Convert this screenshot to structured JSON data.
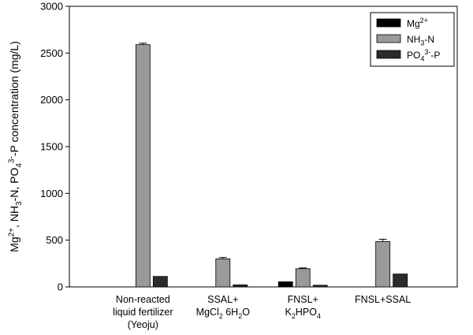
{
  "chart_data": {
    "type": "bar",
    "categories": [
      {
        "lines": [
          [
            {
              "t": "Non-reacted"
            }
          ],
          [
            {
              "t": "liquid fertilizer"
            }
          ],
          [
            {
              "t": "(Yeoju)"
            }
          ]
        ]
      },
      {
        "lines": [
          [
            {
              "t": "SSAL+"
            }
          ],
          [
            {
              "t": "MgCl"
            },
            {
              "t": "2",
              "sub": true
            },
            {
              "t": " 6H"
            },
            {
              "t": "2",
              "sub": true
            },
            {
              "t": "O"
            }
          ]
        ]
      },
      {
        "lines": [
          [
            {
              "t": "FNSL+"
            }
          ],
          [
            {
              "t": "K"
            },
            {
              "t": "2",
              "sub": true
            },
            {
              "t": "HPO"
            },
            {
              "t": "4",
              "sub": true
            }
          ]
        ]
      },
      {
        "lines": [
          [
            {
              "t": "FNSL+SSAL"
            }
          ]
        ]
      }
    ],
    "series": [
      {
        "name": [
          {
            "t": "Mg"
          },
          {
            "t": "2+",
            "sup": true
          }
        ],
        "color": "#000000",
        "values": [
          0,
          0,
          55,
          0
        ],
        "errors": [
          0,
          0,
          0,
          0
        ]
      },
      {
        "name": [
          {
            "t": "NH"
          },
          {
            "t": "3",
            "sub": true
          },
          {
            "t": "-N"
          }
        ],
        "color": "#9a9a9a",
        "values": [
          2590,
          300,
          195,
          485
        ],
        "errors": [
          15,
          15,
          8,
          25
        ]
      },
      {
        "name": [
          {
            "t": "PO"
          },
          {
            "t": "4",
            "sub": true
          },
          {
            "t": "3-",
            "sup": true
          },
          {
            "t": "-P"
          }
        ],
        "color": "#2b2b2b",
        "values": [
          112,
          22,
          18,
          138
        ],
        "errors": [
          0,
          0,
          0,
          0
        ]
      }
    ],
    "ylabel": [
      {
        "t": "Mg"
      },
      {
        "t": "2+",
        "sup": true
      },
      {
        "t": ", NH"
      },
      {
        "t": "3",
        "sub": true
      },
      {
        "t": "-N, PO"
      },
      {
        "t": "4",
        "sub": true
      },
      {
        "t": "3-",
        "sup": true
      },
      {
        "t": "-P concentration (mg/L)"
      }
    ],
    "xlabel": "",
    "ylim": [
      0,
      3000
    ],
    "yticks": [
      0,
      500,
      1000,
      1500,
      2000,
      2500,
      3000
    ],
    "grid": false,
    "legend_position": "top-right"
  }
}
